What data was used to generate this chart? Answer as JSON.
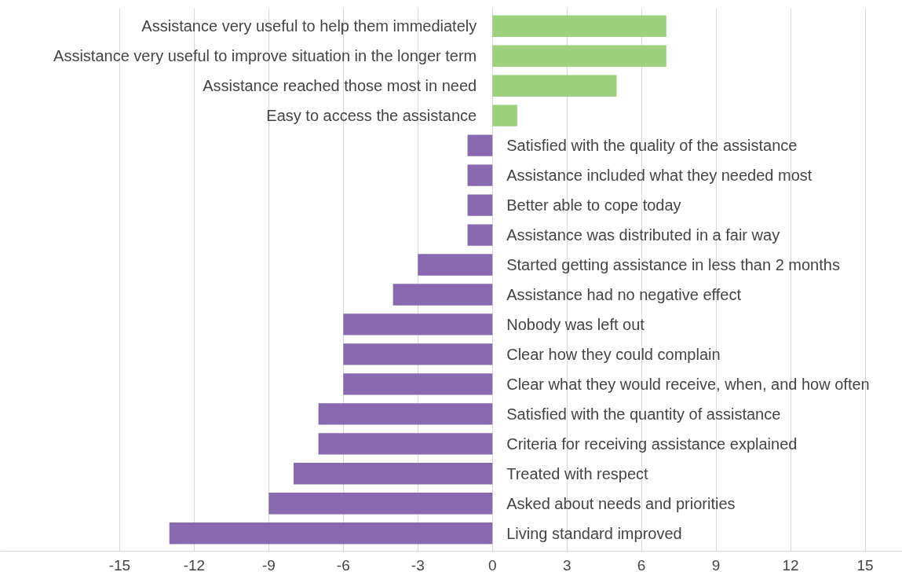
{
  "chart_data": {
    "type": "bar",
    "orientation": "horizontal",
    "categories": [
      "Assistance very useful to help them immediately",
      "Assistance very useful to improve situation in the longer term",
      "Assistance reached those most in need",
      "Easy to access the assistance",
      "Satisfied with the quality of the assistance",
      "Assistance included what they needed most",
      "Better able to cope today",
      "Assistance was distributed in a fair way",
      "Started getting assistance in less than 2 months",
      "Assistance had no negative effect",
      "Nobody was left out",
      "Clear how they could complain",
      "Clear what they would receive, when, and how often",
      "Satisfied with the quantity of assistance",
      "Criteria for receiving assistance explained",
      "Treated with respect",
      "Asked about needs and priorities",
      "Living standard improved"
    ],
    "values": [
      7,
      7,
      5,
      1,
      -1,
      -1,
      -1,
      -1,
      -3,
      -4,
      -6,
      -6,
      -6,
      -7,
      -7,
      -8,
      -9,
      -13
    ],
    "colors": [
      "#9dd17e",
      "#9dd17e",
      "#9dd17e",
      "#9dd17e",
      "#8869b0",
      "#8869b0",
      "#8869b0",
      "#8869b0",
      "#8869b0",
      "#8869b0",
      "#8869b0",
      "#8869b0",
      "#8869b0",
      "#8869b0",
      "#8869b0",
      "#8869b0",
      "#8869b0",
      "#8869b0"
    ],
    "xlim": [
      -19.8,
      16.5
    ],
    "xticks": [
      -15,
      -12,
      -9,
      -6,
      -3,
      0,
      3,
      6,
      9,
      12,
      15
    ],
    "grid": "x"
  }
}
